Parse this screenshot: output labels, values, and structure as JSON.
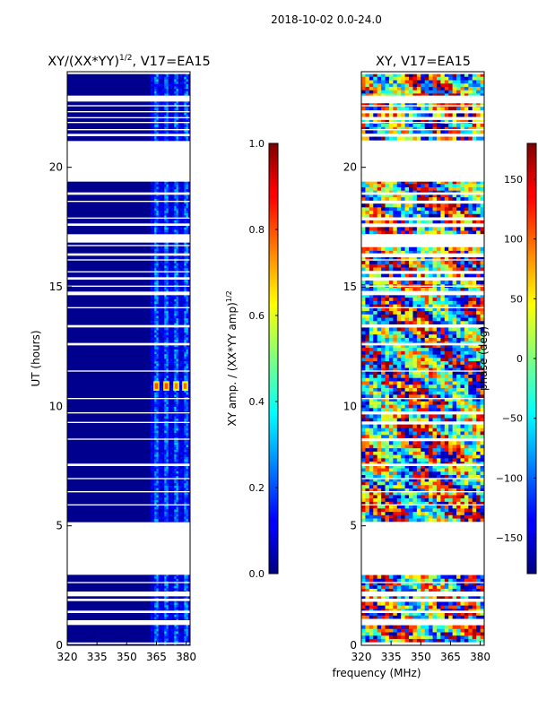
{
  "chart_data": [
    {
      "type": "heatmap",
      "suptitle": "2018-10-02 0.0-24.0",
      "title_main": "XY/(XX*YY)",
      "title_power": "1/2",
      "title_suffix": ", V17=EA15",
      "xlabel": "",
      "ylabel": "UT (hours)",
      "xlim": [
        320,
        382
      ],
      "ylim": [
        0,
        24
      ],
      "x_ticks": [
        320,
        335,
        350,
        365,
        380
      ],
      "y_ticks": [
        0,
        5,
        10,
        15,
        20
      ],
      "colorbar": {
        "label_main": "XY amp. / (XX*YY amp)",
        "label_power": "1/2",
        "range": [
          0.0,
          1.0
        ],
        "ticks": [
          0.0,
          0.2,
          0.4,
          0.6,
          0.8,
          1.0
        ],
        "tick_labels": [
          "0.0",
          "0.2",
          "0.4",
          "0.6",
          "0.8",
          "1.0"
        ],
        "colormap": "jet"
      },
      "no_data_intervals_hours": [
        [
          0.05,
          0.12
        ],
        [
          0.85,
          1.05
        ],
        [
          1.35,
          1.45
        ],
        [
          1.85,
          1.95
        ],
        [
          2.05,
          2.25
        ],
        [
          2.6,
          2.65
        ],
        [
          2.95,
          5.15
        ],
        [
          5.85,
          5.9
        ],
        [
          6.4,
          6.45
        ],
        [
          6.95,
          7.0
        ],
        [
          7.5,
          7.6
        ],
        [
          8.6,
          8.65
        ],
        [
          9.3,
          9.35
        ],
        [
          9.7,
          9.75
        ],
        [
          10.3,
          10.35
        ],
        [
          11.45,
          11.5
        ],
        [
          12.55,
          12.65
        ],
        [
          13.3,
          13.4
        ],
        [
          14.1,
          14.15
        ],
        [
          14.65,
          14.8
        ],
        [
          15.0,
          15.05
        ],
        [
          15.3,
          15.4
        ],
        [
          15.6,
          15.65
        ],
        [
          16.1,
          16.15
        ],
        [
          16.3,
          16.4
        ],
        [
          16.7,
          16.75
        ],
        [
          16.85,
          17.2
        ],
        [
          17.55,
          17.65
        ],
        [
          17.85,
          17.9
        ],
        [
          18.55,
          18.6
        ],
        [
          18.85,
          18.95
        ],
        [
          19.4,
          21.1
        ],
        [
          21.3,
          21.4
        ],
        [
          21.55,
          21.6
        ],
        [
          21.85,
          21.9
        ],
        [
          22.05,
          22.1
        ],
        [
          22.3,
          22.35
        ],
        [
          22.55,
          22.6
        ],
        [
          22.75,
          23.0
        ],
        [
          23.9,
          24.0
        ]
      ],
      "hotspots": [
        {
          "x": [
            363.5,
            366.5
          ],
          "y": [
            10.65,
            11.05
          ],
          "value": 0.65
        },
        {
          "x": [
            368.5,
            371.5
          ],
          "y": [
            10.65,
            11.05
          ],
          "value": 0.65
        },
        {
          "x": [
            373.5,
            376.5
          ],
          "y": [
            10.65,
            11.05
          ],
          "value": 0.6
        },
        {
          "x": [
            378.0,
            381.0
          ],
          "y": [
            10.65,
            11.05
          ],
          "value": 0.62
        }
      ]
    },
    {
      "type": "heatmap",
      "title_main": "XY, V17=EA15",
      "xlabel": "frequency (MHz)",
      "ylabel": "",
      "xlim": [
        320,
        382
      ],
      "ylim": [
        0,
        24
      ],
      "x_ticks": [
        320,
        335,
        350,
        365,
        380
      ],
      "y_ticks": [
        0,
        5,
        10,
        15,
        20
      ],
      "colorbar": {
        "label_main": "phase (deg)",
        "range": [
          -180,
          180
        ],
        "ticks": [
          -150,
          -100,
          -50,
          0,
          50,
          100,
          150
        ],
        "tick_labels": [
          "−150",
          "−100",
          "−50",
          "0",
          "50",
          "100",
          "150"
        ],
        "colormap": "jet"
      },
      "no_data_intervals_hours": [
        [
          0.05,
          0.12
        ],
        [
          0.85,
          1.05
        ],
        [
          1.35,
          1.45
        ],
        [
          1.85,
          1.95
        ],
        [
          2.05,
          2.25
        ],
        [
          2.6,
          2.65
        ],
        [
          2.95,
          5.15
        ],
        [
          5.85,
          5.9
        ],
        [
          6.4,
          6.45
        ],
        [
          6.95,
          7.0
        ],
        [
          7.5,
          7.6
        ],
        [
          8.6,
          8.65
        ],
        [
          9.3,
          9.35
        ],
        [
          9.7,
          9.75
        ],
        [
          10.3,
          10.35
        ],
        [
          11.45,
          11.5
        ],
        [
          12.55,
          12.65
        ],
        [
          13.3,
          13.4
        ],
        [
          14.1,
          14.15
        ],
        [
          14.65,
          14.8
        ],
        [
          15.0,
          15.05
        ],
        [
          15.3,
          15.4
        ],
        [
          15.6,
          15.65
        ],
        [
          16.1,
          16.15
        ],
        [
          16.3,
          16.4
        ],
        [
          16.7,
          16.75
        ],
        [
          16.85,
          17.2
        ],
        [
          17.55,
          17.65
        ],
        [
          17.85,
          17.9
        ],
        [
          18.55,
          18.6
        ],
        [
          18.85,
          18.95
        ],
        [
          19.4,
          21.1
        ],
        [
          21.3,
          21.4
        ],
        [
          21.55,
          21.6
        ],
        [
          21.85,
          21.9
        ],
        [
          22.05,
          22.1
        ],
        [
          22.3,
          22.35
        ],
        [
          22.55,
          22.6
        ],
        [
          22.75,
          23.0
        ],
        [
          23.9,
          24.0
        ]
      ]
    }
  ]
}
